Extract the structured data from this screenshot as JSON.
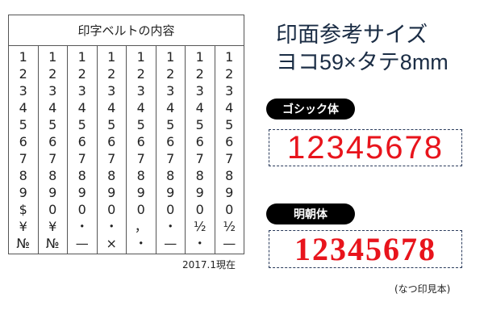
{
  "table": {
    "header": "印字ベルトの内容",
    "columns": [
      [
        "1",
        "2",
        "3",
        "4",
        "5",
        "6",
        "7",
        "8",
        "9",
        "$",
        "¥",
        "№"
      ],
      [
        "1",
        "2",
        "3",
        "4",
        "5",
        "6",
        "7",
        "8",
        "9",
        "0",
        "¥",
        "№"
      ],
      [
        "1",
        "2",
        "3",
        "4",
        "5",
        "6",
        "7",
        "8",
        "9",
        "0",
        "・",
        "—"
      ],
      [
        "1",
        "2",
        "3",
        "4",
        "5",
        "6",
        "7",
        "8",
        "9",
        "0",
        "・",
        "×"
      ],
      [
        "1",
        "2",
        "3",
        "4",
        "5",
        "6",
        "7",
        "8",
        "9",
        "0",
        "，",
        "・"
      ],
      [
        "1",
        "2",
        "3",
        "4",
        "5",
        "6",
        "7",
        "8",
        "9",
        "0",
        "・",
        "—"
      ],
      [
        "1",
        "2",
        "3",
        "4",
        "5",
        "6",
        "7",
        "8",
        "9",
        "0",
        "½",
        "・"
      ],
      [
        "1",
        "2",
        "3",
        "4",
        "5",
        "6",
        "7",
        "8",
        "9",
        "0",
        "½",
        "—"
      ]
    ],
    "note": "2017.1現在"
  },
  "title": {
    "line1": "印面参考サイズ",
    "line2": "ヨコ59×タテ8mm"
  },
  "gothic": {
    "label": "ゴシック体",
    "sample": "12345678"
  },
  "mincho": {
    "label": "明朝体",
    "sample": "12345678"
  },
  "caption": "(なつ印見本)",
  "colors": {
    "sample_red": "#e8141c",
    "title_navy": "#1b2d45"
  }
}
